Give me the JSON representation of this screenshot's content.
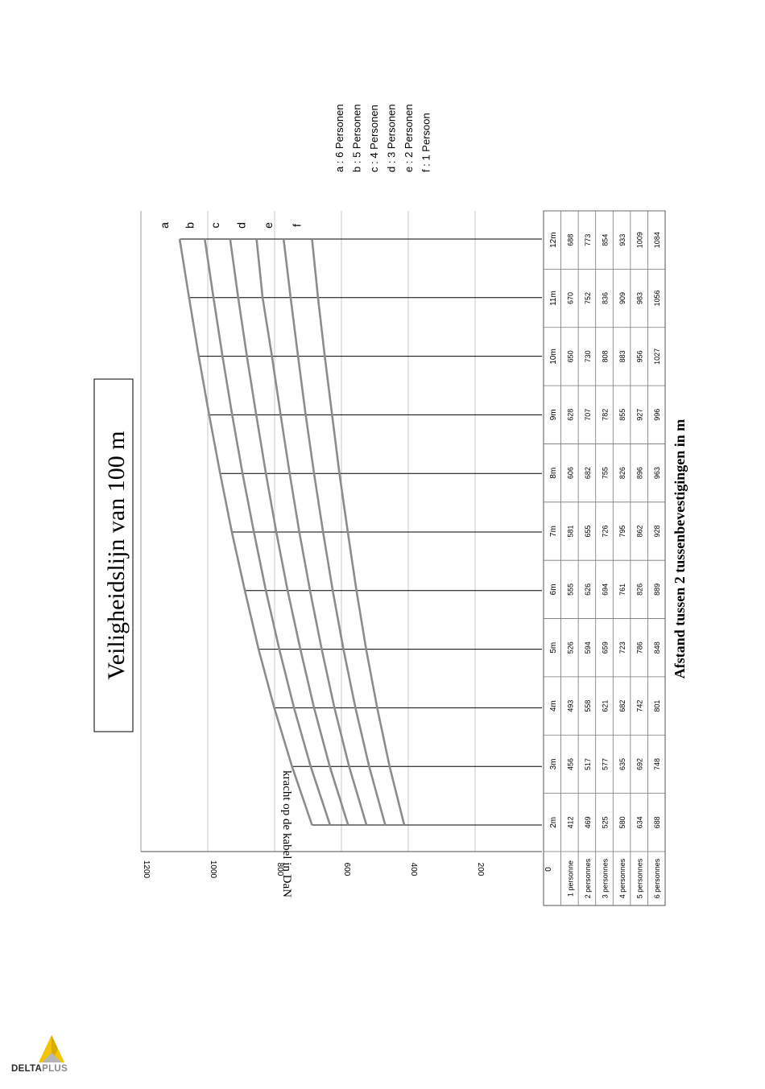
{
  "chart_data": {
    "type": "line",
    "title": "Veiligheidslijn van 100 m",
    "xlabel": "Afstand tussen 2 tussenbevestigingen in m",
    "ylabel": "kracht op de kabel in DaN",
    "categories": [
      "2m",
      "3m",
      "4m",
      "5m",
      "6m",
      "7m",
      "8m",
      "9m",
      "10m",
      "11m",
      "12m"
    ],
    "yticks": [
      "0",
      "200",
      "400",
      "600",
      "800",
      "1000",
      "1200"
    ],
    "ylim": [
      0,
      1200
    ],
    "grid": true,
    "series": [
      {
        "name": "1 personne",
        "label": "f",
        "values": [
          412,
          456,
          493,
          526,
          555,
          581,
          606,
          628,
          650,
          670,
          688
        ]
      },
      {
        "name": "2 personnes",
        "label": "e",
        "values": [
          469,
          517,
          558,
          594,
          626,
          655,
          682,
          707,
          730,
          752,
          773
        ]
      },
      {
        "name": "3 personnes",
        "label": "d",
        "values": [
          525,
          577,
          621,
          659,
          694,
          726,
          755,
          782,
          808,
          836,
          854
        ]
      },
      {
        "name": "4 personnes",
        "label": "c",
        "values": [
          580,
          635,
          682,
          723,
          761,
          795,
          826,
          855,
          883,
          909,
          933
        ]
      },
      {
        "name": "5 personnes",
        "label": "b",
        "values": [
          634,
          692,
          742,
          786,
          826,
          862,
          896,
          927,
          956,
          983,
          1009
        ]
      },
      {
        "name": "6 personnes",
        "label": "a",
        "values": [
          688,
          748,
          801,
          848,
          889,
          928,
          963,
          996,
          1027,
          1056,
          1084
        ]
      }
    ],
    "legend": [
      "a : 6 Personen",
      "b : 5 Personen",
      "c : 4 Personen",
      "d : 3 Personen",
      "e : 2 Personen",
      "f : 1 Persoon"
    ],
    "legend_position": "top-right"
  },
  "brand": {
    "logo_text_main": "DELTA",
    "logo_text_accent": "PLUS",
    "logo_color": "#f2c500"
  },
  "colors": {
    "series_line": "#8c8c8c",
    "gridline": "#c8c8c8",
    "drop_line": "#000000"
  }
}
